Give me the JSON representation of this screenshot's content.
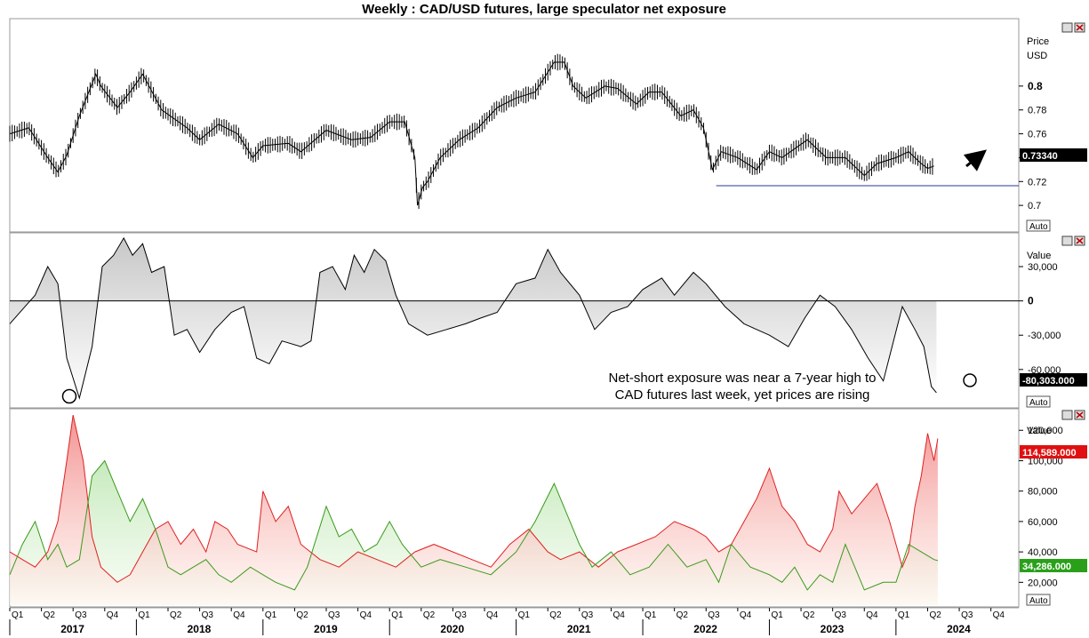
{
  "chart_data": [
    {
      "panel": "price",
      "type": "line",
      "title": "Weekly : CAD/USD futures, large speculator net exposure",
      "ylabel": "Price",
      "unit": "USD",
      "ylim": [
        0.68,
        0.855
      ],
      "yticks": [
        "0.8",
        "0.78",
        "0.76",
        "0.74",
        "0.72",
        "0.7"
      ],
      "last_value_label": "0.73340",
      "support_level": 0.7165,
      "x": [
        2017.0,
        2017.15,
        2017.3,
        2017.38,
        2017.45,
        2017.55,
        2017.68,
        2017.72,
        2017.85,
        2017.95,
        2018.05,
        2018.2,
        2018.4,
        2018.5,
        2018.65,
        2018.8,
        2018.92,
        2019.0,
        2019.2,
        2019.3,
        2019.5,
        2019.7,
        2019.85,
        2020.0,
        2020.12,
        2020.2,
        2020.22,
        2020.26,
        2020.3,
        2020.4,
        2020.55,
        2020.7,
        2020.85,
        2021.0,
        2021.15,
        2021.3,
        2021.38,
        2021.45,
        2021.55,
        2021.7,
        2021.8,
        2021.95,
        2022.05,
        2022.15,
        2022.3,
        2022.4,
        2022.48,
        2022.55,
        2022.62,
        2022.75,
        2022.9,
        2023.0,
        2023.1,
        2023.3,
        2023.45,
        2023.6,
        2023.75,
        2023.85,
        2024.0,
        2024.1,
        2024.2,
        2024.25,
        2024.3
      ],
      "y": [
        0.76,
        0.765,
        0.74,
        0.728,
        0.742,
        0.775,
        0.81,
        0.8,
        0.782,
        0.795,
        0.81,
        0.78,
        0.765,
        0.755,
        0.768,
        0.76,
        0.74,
        0.75,
        0.752,
        0.745,
        0.763,
        0.755,
        0.757,
        0.77,
        0.77,
        0.74,
        0.7,
        0.715,
        0.72,
        0.74,
        0.755,
        0.765,
        0.782,
        0.79,
        0.795,
        0.82,
        0.82,
        0.8,
        0.79,
        0.8,
        0.798,
        0.785,
        0.795,
        0.795,
        0.775,
        0.78,
        0.765,
        0.73,
        0.745,
        0.74,
        0.73,
        0.745,
        0.74,
        0.755,
        0.74,
        0.74,
        0.725,
        0.735,
        0.74,
        0.745,
        0.735,
        0.731,
        0.733
      ]
    },
    {
      "panel": "net_exposure",
      "type": "area",
      "ylabel": "Value",
      "ylim": [
        -92000,
        58000
      ],
      "yticks": [
        "30,000",
        "0",
        "-30,000",
        "-60,000"
      ],
      "last_value_label": "-80,303.000",
      "annotation": [
        "Net-short exposure was near a 7-year high to",
        "CAD futures last week, yet prices are rising"
      ],
      "x": [
        2017.0,
        2017.12,
        2017.2,
        2017.3,
        2017.38,
        2017.45,
        2017.55,
        2017.65,
        2017.73,
        2017.82,
        2017.9,
        2017.97,
        2018.05,
        2018.12,
        2018.22,
        2018.3,
        2018.4,
        2018.5,
        2018.62,
        2018.75,
        2018.85,
        2018.95,
        2019.05,
        2019.15,
        2019.3,
        2019.38,
        2019.45,
        2019.55,
        2019.65,
        2019.72,
        2019.8,
        2019.88,
        2019.97,
        2020.05,
        2020.15,
        2020.3,
        2020.45,
        2020.6,
        2020.72,
        2020.85,
        2021.0,
        2021.15,
        2021.25,
        2021.35,
        2021.5,
        2021.62,
        2021.75,
        2021.88,
        2022.0,
        2022.15,
        2022.25,
        2022.4,
        2022.5,
        2022.65,
        2022.8,
        2022.9,
        2023.0,
        2023.15,
        2023.28,
        2023.4,
        2023.52,
        2023.65,
        2023.78,
        2023.9,
        2024.05,
        2024.15,
        2024.22,
        2024.28,
        2024.32
      ],
      "y": [
        -20000,
        -5000,
        5000,
        30000,
        15000,
        -50000,
        -85000,
        -40000,
        30000,
        40000,
        55000,
        40000,
        50000,
        25000,
        30000,
        -30000,
        -25000,
        -45000,
        -25000,
        -10000,
        -5000,
        -50000,
        -55000,
        -35000,
        -40000,
        -35000,
        25000,
        30000,
        10000,
        40000,
        25000,
        45000,
        35000,
        5000,
        -20000,
        -30000,
        -25000,
        -20000,
        -15000,
        -10000,
        15000,
        20000,
        45000,
        25000,
        5000,
        -25000,
        -10000,
        -5000,
        10000,
        20000,
        5000,
        25000,
        15000,
        -5000,
        -20000,
        -25000,
        -30000,
        -40000,
        -15000,
        5000,
        -5000,
        -25000,
        -50000,
        -70000,
        -5000,
        -25000,
        -40000,
        -75000,
        -80303
      ]
    },
    {
      "panel": "long_short",
      "type": "area",
      "ylabel": "Value",
      "ylim": [
        5000,
        133000
      ],
      "yticks": [
        "120,000",
        "100,000",
        "80,000",
        "60,000",
        "40,000",
        "20,000"
      ],
      "last_value_labels": [
        "114,589.000",
        "34,286.000"
      ],
      "series": [
        {
          "color": "#e02020",
          "x": [
            2017.0,
            2017.1,
            2017.2,
            2017.3,
            2017.38,
            2017.45,
            2017.5,
            2017.58,
            2017.65,
            2017.72,
            2017.85,
            2017.95,
            2018.05,
            2018.15,
            2018.25,
            2018.35,
            2018.45,
            2018.55,
            2018.62,
            2018.72,
            2018.8,
            2018.95,
            2019.0,
            2019.1,
            2019.2,
            2019.3,
            2019.45,
            2019.6,
            2019.75,
            2019.9,
            2020.05,
            2020.2,
            2020.35,
            2020.5,
            2020.65,
            2020.8,
            2020.95,
            2021.1,
            2021.25,
            2021.35,
            2021.5,
            2021.65,
            2021.8,
            2021.95,
            2022.1,
            2022.25,
            2022.4,
            2022.5,
            2022.6,
            2022.7,
            2022.8,
            2022.9,
            2023.0,
            2023.1,
            2023.2,
            2023.3,
            2023.4,
            2023.5,
            2023.55,
            2023.65,
            2023.75,
            2023.85,
            2023.95,
            2024.05,
            2024.1,
            2024.15,
            2024.2,
            2024.25,
            2024.3,
            2024.33
          ],
          "y": [
            40000,
            35000,
            30000,
            40000,
            60000,
            100000,
            130000,
            100000,
            50000,
            30000,
            20000,
            25000,
            40000,
            55000,
            60000,
            45000,
            55000,
            40000,
            60000,
            55000,
            45000,
            40000,
            80000,
            60000,
            70000,
            45000,
            35000,
            30000,
            40000,
            35000,
            30000,
            40000,
            45000,
            40000,
            35000,
            30000,
            45000,
            55000,
            40000,
            35000,
            40000,
            30000,
            40000,
            45000,
            50000,
            60000,
            55000,
            50000,
            40000,
            45000,
            60000,
            75000,
            95000,
            70000,
            60000,
            45000,
            40000,
            55000,
            80000,
            65000,
            75000,
            85000,
            60000,
            30000,
            40000,
            70000,
            90000,
            118000,
            100000,
            114589
          ]
        },
        {
          "color": "#3a9a1a",
          "x": [
            2017.0,
            2017.1,
            2017.2,
            2017.3,
            2017.38,
            2017.45,
            2017.55,
            2017.65,
            2017.75,
            2017.85,
            2017.95,
            2018.05,
            2018.15,
            2018.25,
            2018.35,
            2018.45,
            2018.55,
            2018.65,
            2018.75,
            2018.9,
            2019.0,
            2019.1,
            2019.25,
            2019.35,
            2019.5,
            2019.6,
            2019.7,
            2019.8,
            2019.9,
            2020.0,
            2020.1,
            2020.25,
            2020.4,
            2020.6,
            2020.8,
            2021.0,
            2021.15,
            2021.3,
            2021.4,
            2021.5,
            2021.6,
            2021.75,
            2021.9,
            2022.05,
            2022.2,
            2022.35,
            2022.5,
            2022.6,
            2022.7,
            2022.85,
            2023.0,
            2023.1,
            2023.2,
            2023.3,
            2023.4,
            2023.5,
            2023.6,
            2023.75,
            2023.9,
            2024.0,
            2024.1,
            2024.2,
            2024.3,
            2024.33
          ],
          "y": [
            25000,
            45000,
            60000,
            35000,
            45000,
            30000,
            35000,
            90000,
            100000,
            80000,
            60000,
            75000,
            55000,
            30000,
            25000,
            30000,
            35000,
            25000,
            20000,
            30000,
            25000,
            20000,
            15000,
            30000,
            70000,
            50000,
            55000,
            40000,
            45000,
            60000,
            45000,
            30000,
            35000,
            30000,
            25000,
            40000,
            60000,
            85000,
            65000,
            45000,
            30000,
            40000,
            25000,
            30000,
            45000,
            30000,
            35000,
            20000,
            45000,
            30000,
            25000,
            20000,
            30000,
            15000,
            25000,
            20000,
            45000,
            15000,
            20000,
            20000,
            45000,
            40000,
            35000,
            34286
          ]
        }
      ]
    }
  ],
  "x_axis": {
    "quarters": [
      "Q1",
      "Q2",
      "Q3",
      "Q4"
    ],
    "years": [
      "2017",
      "2018",
      "2019",
      "2020",
      "2021",
      "2022",
      "2023",
      "2024"
    ],
    "xlim": [
      2017.0,
      2024.97
    ]
  },
  "controls": {
    "auto_label": "Auto"
  },
  "annotations": {
    "arrow": "up-right-arrow",
    "markers": [
      "circle-marker-low-2017",
      "circle-marker-2024"
    ]
  }
}
